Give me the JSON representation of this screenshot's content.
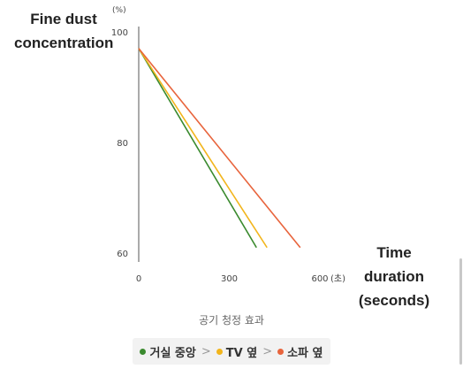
{
  "chart_data": {
    "type": "line",
    "ylabel": "Fine dust\nconcentration",
    "yunit": "(%)",
    "xlabel": "Time duration\n(seconds)",
    "xunit": "(초)",
    "xlim": [
      0,
      600
    ],
    "ylim": [
      60,
      100
    ],
    "xticks": [
      0,
      300,
      600
    ],
    "yticks": [
      60,
      80,
      100
    ],
    "subtitle": "공기 청정 효과",
    "grid": false,
    "legend_position": "bottom",
    "series": [
      {
        "name": "거실 중앙",
        "color": "#3a8a2e",
        "x": [
          0,
          390
        ],
        "y": [
          97,
          61
        ]
      },
      {
        "name": "TV 옆",
        "color": "#f2b51c",
        "x": [
          0,
          425
        ],
        "y": [
          97,
          61
        ]
      },
      {
        "name": "소파 옆",
        "color": "#e8643c",
        "x": [
          0,
          535
        ],
        "y": [
          97,
          61
        ]
      }
    ]
  },
  "legend": {
    "separator": ">"
  }
}
